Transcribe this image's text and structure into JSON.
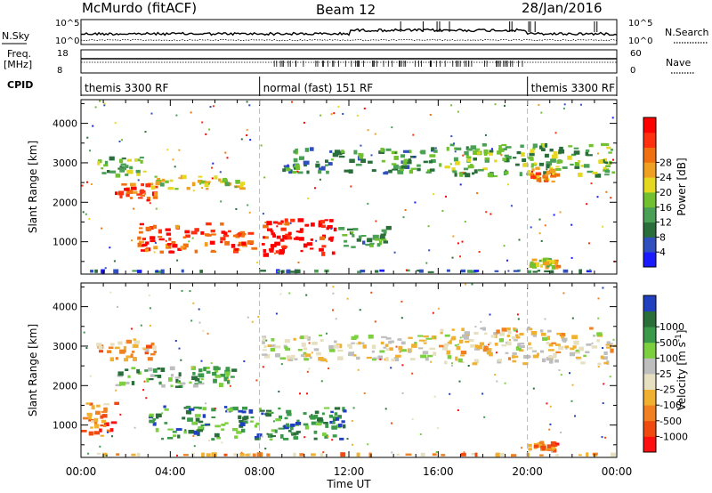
{
  "header": {
    "station": "McMurdo (fitACF)",
    "beam": "Beam 12",
    "date": "28/Jan/2016"
  },
  "strip": {
    "nsky_label": "N.Sky",
    "nsky_ticks": [
      "10^5",
      "10^0"
    ],
    "nsearch_label": "N.Search",
    "nsearch_ticks": [
      "10^5",
      "10^0"
    ],
    "freq_label_1": "Freq.",
    "freq_label_2": "[MHz]",
    "freq_ticks": [
      "18",
      "8"
    ],
    "nave_label": "Nave",
    "nave_ticks": [
      "60",
      "0"
    ],
    "cpid_label": "CPID",
    "cpid_segments": [
      {
        "label": "themis 3300 RF",
        "start_hour": 0,
        "end_hour": 8
      },
      {
        "label": "normal (fast) 151 RF",
        "start_hour": 8,
        "end_hour": 20
      },
      {
        "label": "themis 3300 RF",
        "start_hour": 20,
        "end_hour": 24
      }
    ]
  },
  "chart_data": [
    {
      "type": "heatmap",
      "panel": "power",
      "ylabel": "Slant Range [km]",
      "yticks": [
        1000,
        2000,
        3000,
        4000
      ],
      "ylim": [
        180,
        4600
      ],
      "xlim_hours": [
        0,
        24
      ],
      "colorbar": {
        "label": "Power [dB]",
        "ticks": [
          "4",
          "8",
          "12",
          "16",
          "20",
          "24",
          "28"
        ],
        "colors": [
          "#1a1aff",
          "#3050c0",
          "#2a6e3a",
          "#4aa055",
          "#70c030",
          "#e6d820",
          "#f0a020",
          "#f07010",
          "#ff3010",
          "#ff0000"
        ]
      },
      "regions": [
        {
          "x": [
            0.7,
            3.0
          ],
          "y": [
            2600,
            3200
          ],
          "level": 0.45
        },
        {
          "x": [
            1.5,
            3.5
          ],
          "y": [
            2000,
            2500
          ],
          "level": 0.8
        },
        {
          "x": [
            3.0,
            7.5
          ],
          "y": [
            2300,
            2700
          ],
          "level": 0.55
        },
        {
          "x": [
            2.5,
            8.0
          ],
          "y": [
            700,
            1500
          ],
          "level": 0.85
        },
        {
          "x": [
            8.0,
            11.5
          ],
          "y": [
            600,
            1600
          ],
          "level": 0.95
        },
        {
          "x": [
            11.5,
            14.0
          ],
          "y": [
            800,
            1400
          ],
          "level": 0.35
        },
        {
          "x": [
            9.0,
            16.0
          ],
          "y": [
            2700,
            3400
          ],
          "level": 0.3
        },
        {
          "x": [
            16.0,
            24.0
          ],
          "y": [
            2600,
            3500
          ],
          "level": 0.4
        },
        {
          "x": [
            20.0,
            21.5
          ],
          "y": [
            2500,
            2900
          ],
          "level": 0.65
        },
        {
          "x": [
            20.0,
            21.5
          ],
          "y": [
            300,
            600
          ],
          "level": 0.55
        },
        {
          "x": [
            0.0,
            24.0
          ],
          "y": [
            200,
            300
          ],
          "level": 0.2
        }
      ]
    },
    {
      "type": "heatmap",
      "panel": "velocity",
      "ylabel": "Slant Range [km]",
      "yticks": [
        1000,
        2000,
        3000,
        4000
      ],
      "ylim": [
        180,
        4600
      ],
      "xlim_hours": [
        0,
        24
      ],
      "xticks": [
        "00:00",
        "04:00",
        "08:00",
        "12:00",
        "16:00",
        "20:00",
        "00:00"
      ],
      "xlabel": "Time UT",
      "colorbar": {
        "label": "Velocity [m s",
        "label_exponent": "-1",
        "label_close": "]",
        "ticks": [
          "-1000",
          "-500",
          "-100",
          "-25",
          "25",
          "100",
          "500",
          "1000"
        ],
        "colors": [
          "#ff1010",
          "#f04a10",
          "#f08020",
          "#f0b030",
          "#e6e0c0",
          "#bebebe",
          "#7cd040",
          "#3a9a4a",
          "#2a6e3a",
          "#2040c0"
        ]
      },
      "regions": [
        {
          "x": [
            0.5,
            3.5
          ],
          "y": [
            2600,
            3200
          ],
          "level": 0.35
        },
        {
          "x": [
            1.5,
            7.0
          ],
          "y": [
            1900,
            2500
          ],
          "level": 0.7
        },
        {
          "x": [
            0.0,
            1.8
          ],
          "y": [
            700,
            1600
          ],
          "level": 0.25
        },
        {
          "x": [
            3.0,
            12.0
          ],
          "y": [
            600,
            1500
          ],
          "level": 0.78
        },
        {
          "x": [
            8.0,
            16.0
          ],
          "y": [
            2600,
            3300
          ],
          "level": 0.5
        },
        {
          "x": [
            16.0,
            24.0
          ],
          "y": [
            2500,
            3500
          ],
          "level": 0.45
        },
        {
          "x": [
            20.0,
            21.5
          ],
          "y": [
            300,
            600
          ],
          "level": 0.25
        },
        {
          "x": [
            0.0,
            24.0
          ],
          "y": [
            200,
            300
          ],
          "level": 0.3
        }
      ]
    }
  ]
}
